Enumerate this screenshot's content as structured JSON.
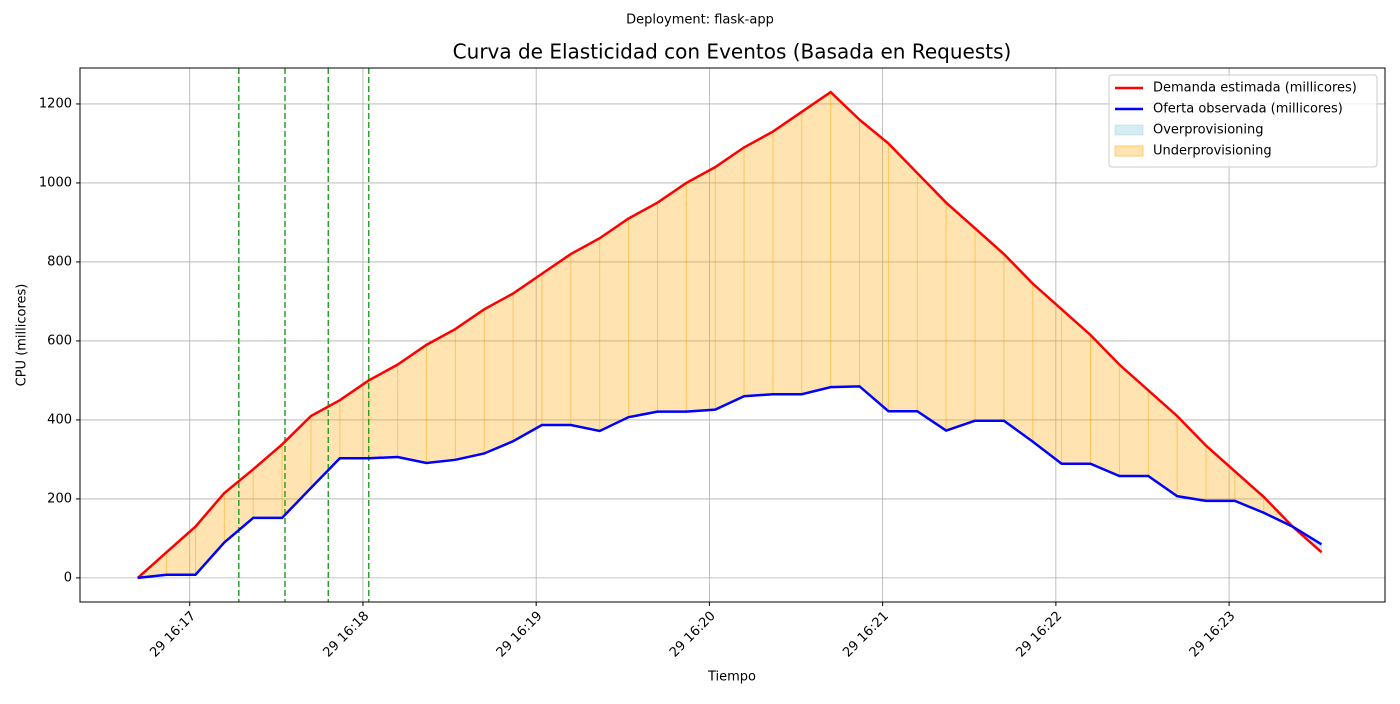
{
  "chart_data": {
    "type": "elasticity",
    "suptitle": "Deployment: flask-app",
    "title": "Curva de Elasticidad con Eventos (Basada en Requests)",
    "xlabel": "Tiempo",
    "ylabel": "CPU (millicores)",
    "x": [
      "16:16:42",
      "16:16:52",
      "16:17:02",
      "16:17:12",
      "16:17:22",
      "16:17:32",
      "16:17:42",
      "16:17:52",
      "16:18:02",
      "16:18:12",
      "16:18:22",
      "16:18:32",
      "16:18:42",
      "16:18:52",
      "16:19:02",
      "16:19:12",
      "16:19:22",
      "16:19:32",
      "16:19:42",
      "16:19:52",
      "16:20:02",
      "16:20:12",
      "16:20:22",
      "16:20:32",
      "16:20:42",
      "16:20:52",
      "16:21:02",
      "16:21:12",
      "16:21:22",
      "16:21:32",
      "16:21:42",
      "16:21:52",
      "16:22:02",
      "16:22:12",
      "16:22:22",
      "16:22:32",
      "16:22:42",
      "16:22:52",
      "16:23:02",
      "16:23:12",
      "16:23:22",
      "16:23:32"
    ],
    "series": [
      {
        "name": "Demanda estimada (millicores)",
        "color": "#ff0000",
        "values": [
          0,
          65,
          130,
          215,
          275,
          338,
          410,
          450,
          500,
          540,
          590,
          630,
          680,
          720,
          770,
          820,
          860,
          910,
          950,
          1000,
          1040,
          1090,
          1130,
          1180,
          1230,
          1160,
          1100,
          1025,
          950,
          885,
          820,
          745,
          680,
          615,
          540,
          475,
          410,
          335,
          270,
          205,
          130,
          65
        ]
      },
      {
        "name": "Oferta observada (millicores)",
        "color": "#0000ff",
        "values": [
          0,
          8,
          8,
          90,
          152,
          152,
          228,
          303,
          303,
          306,
          291,
          299,
          315,
          346,
          387,
          387,
          372,
          407,
          421,
          421,
          426,
          460,
          465,
          465,
          483,
          485,
          422,
          422,
          373,
          398,
          398,
          345,
          289,
          289,
          258,
          258,
          207,
          195,
          195,
          165,
          130,
          85
        ]
      }
    ],
    "fills": [
      {
        "name": "Overprovisioning",
        "color": "#add8e6"
      },
      {
        "name": "Underprovisioning",
        "color": "#ffa500"
      }
    ],
    "events": [
      "16:17:17",
      "16:17:33",
      "16:17:48",
      "16:18:02"
    ],
    "event_color": "#2ca02c",
    "xlim": [
      "16:16:22",
      "16:23:54"
    ],
    "xticks": [
      {
        "value": "16:17:00",
        "label": "29 16:17"
      },
      {
        "value": "16:18:00",
        "label": "29 16:18"
      },
      {
        "value": "16:19:00",
        "label": "29 16:19"
      },
      {
        "value": "16:20:00",
        "label": "29 16:20"
      },
      {
        "value": "16:21:00",
        "label": "29 16:21"
      },
      {
        "value": "16:22:00",
        "label": "29 16:22"
      },
      {
        "value": "16:23:00",
        "label": "29 16:23"
      }
    ],
    "ylim": [
      -61,
      1291
    ],
    "yticks": [
      0,
      200,
      400,
      600,
      800,
      1000,
      1200
    ],
    "grid": true,
    "legend": "upper right"
  }
}
